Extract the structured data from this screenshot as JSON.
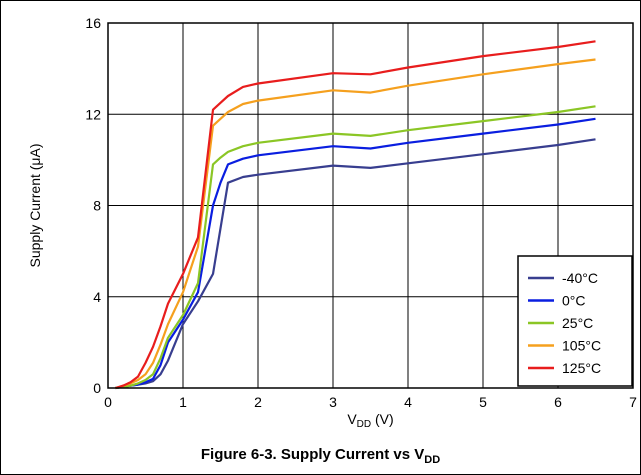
{
  "caption": {
    "prefix": "Figure 6-3. Supply Current vs V",
    "sub": "DD"
  },
  "chart_data": {
    "type": "line",
    "xlabel_main": "V",
    "xlabel_sub": "DD",
    "xlabel_tail": " (V)",
    "ylabel": "Supply Current (μA)",
    "xlim": [
      0,
      7
    ],
    "ylim": [
      0,
      16
    ],
    "xticks": [
      0,
      1,
      2,
      3,
      4,
      5,
      6,
      7
    ],
    "yticks": [
      0,
      4,
      8,
      12,
      16
    ],
    "grid": true,
    "legend_position": "bottom-right",
    "x": [
      0.1,
      0.2,
      0.3,
      0.4,
      0.5,
      0.6,
      0.7,
      0.8,
      1.0,
      1.2,
      1.4,
      1.5,
      1.6,
      1.8,
      2.0,
      3.0,
      3.5,
      4.0,
      5.0,
      6.0,
      6.5
    ],
    "series": [
      {
        "name": "-40°C",
        "color": "#383e8f",
        "values": [
          0.0,
          0.05,
          0.1,
          0.15,
          0.2,
          0.3,
          0.6,
          1.2,
          2.8,
          3.8,
          5.0,
          7.0,
          9.0,
          9.25,
          9.35,
          9.75,
          9.65,
          9.85,
          10.25,
          10.65,
          10.9
        ]
      },
      {
        "name": "0°C",
        "color": "#0a1ee0",
        "values": [
          0.0,
          0.05,
          0.1,
          0.15,
          0.25,
          0.4,
          1.0,
          2.0,
          3.0,
          4.2,
          8.0,
          9.0,
          9.8,
          10.05,
          10.2,
          10.6,
          10.5,
          10.75,
          11.15,
          11.55,
          11.8
        ]
      },
      {
        "name": "25°C",
        "color": "#8bc625",
        "values": [
          0.0,
          0.05,
          0.1,
          0.2,
          0.35,
          0.6,
          1.3,
          2.2,
          3.2,
          4.6,
          9.8,
          10.1,
          10.35,
          10.6,
          10.75,
          11.15,
          11.05,
          11.3,
          11.7,
          12.1,
          12.35
        ]
      },
      {
        "name": "105°C",
        "color": "#f5a01e",
        "values": [
          0.0,
          0.1,
          0.2,
          0.35,
          0.6,
          1.1,
          1.9,
          2.8,
          4.2,
          6.2,
          11.5,
          11.8,
          12.1,
          12.45,
          12.6,
          13.05,
          12.95,
          13.25,
          13.75,
          14.2,
          14.4
        ]
      },
      {
        "name": "125°C",
        "color": "#e81d1d",
        "values": [
          0.0,
          0.1,
          0.25,
          0.5,
          1.1,
          1.8,
          2.7,
          3.7,
          5.0,
          6.6,
          12.2,
          12.5,
          12.8,
          13.2,
          13.35,
          13.8,
          13.75,
          14.05,
          14.55,
          14.95,
          15.2
        ]
      }
    ]
  }
}
